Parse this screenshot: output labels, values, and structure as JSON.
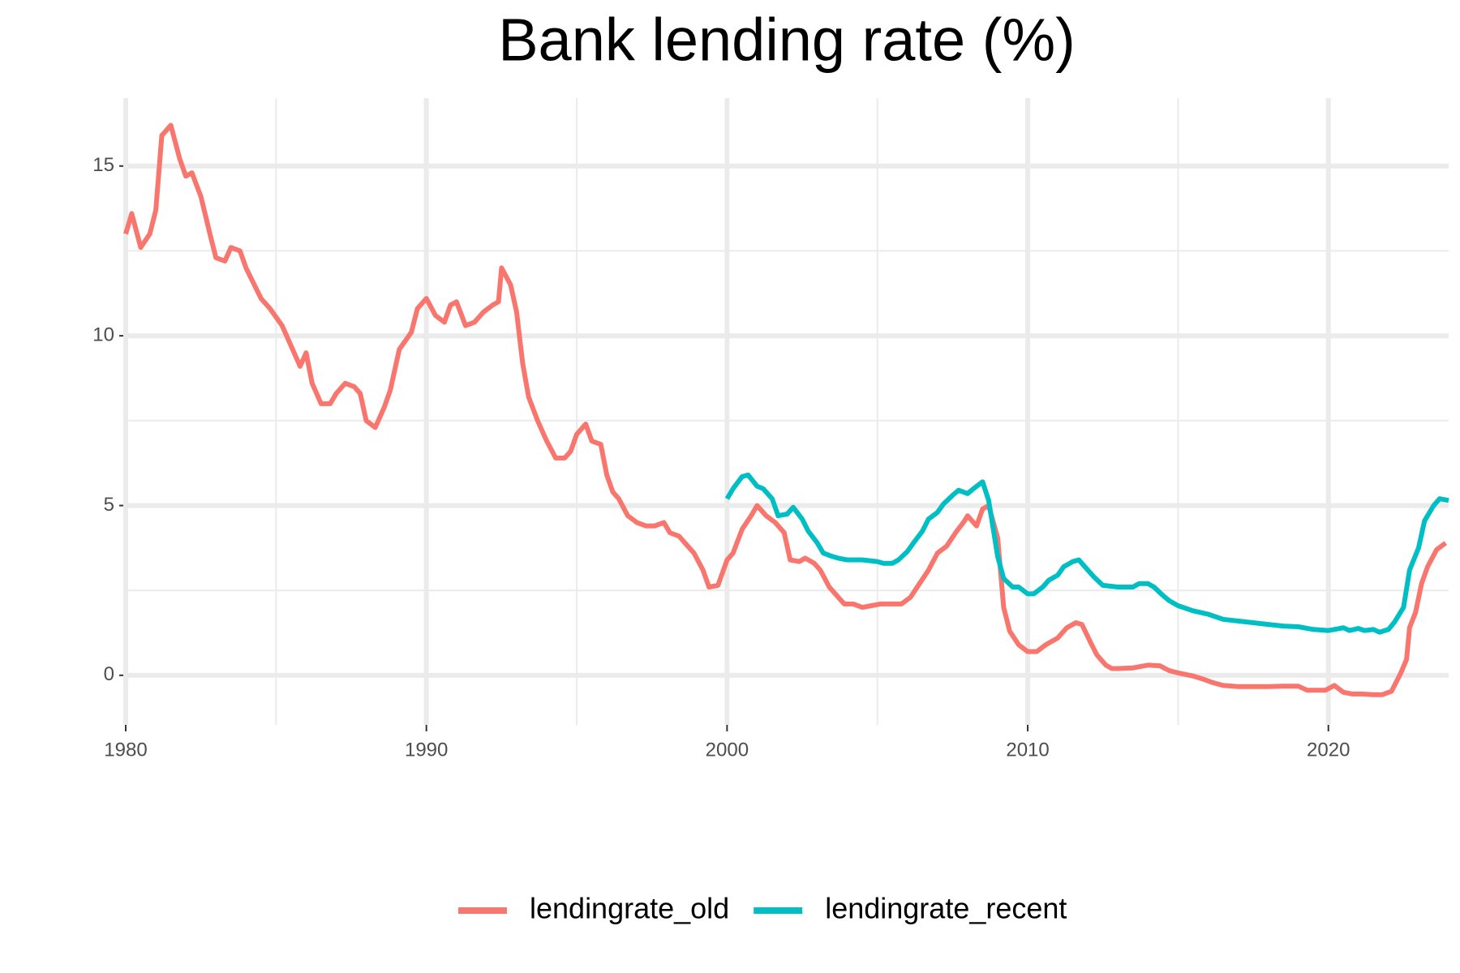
{
  "chart_data": {
    "type": "line",
    "title": "Bank lending rate (%)",
    "xlim": [
      1980,
      2024
    ],
    "xticks": [
      1980,
      1990,
      2000,
      2010,
      2020
    ],
    "x_minor_ticks": [
      1985,
      1995,
      2005,
      2015
    ],
    "ylim": [
      -1.46,
      17.0
    ],
    "yticks": [
      0,
      5,
      10,
      15
    ],
    "y_minor_ticks": [
      2.5,
      7.5,
      12.5
    ],
    "grid": true,
    "legend": "bottom",
    "series": [
      {
        "name": "lendingrate_old",
        "color": "#f8766d",
        "x": [
          1980.0,
          1980.2,
          1980.5,
          1980.8,
          1981.0,
          1981.2,
          1981.5,
          1981.8,
          1982.0,
          1982.2,
          1982.5,
          1982.8,
          1983.0,
          1983.3,
          1983.5,
          1983.8,
          1984.0,
          1984.5,
          1984.8,
          1985.2,
          1985.5,
          1985.8,
          1986.0,
          1986.2,
          1986.5,
          1986.8,
          1987.0,
          1987.3,
          1987.6,
          1987.8,
          1988.0,
          1988.3,
          1988.6,
          1988.8,
          1989.1,
          1989.5,
          1989.7,
          1990.0,
          1990.3,
          1990.6,
          1990.8,
          1991.0,
          1991.3,
          1991.6,
          1991.9,
          1992.2,
          1992.4,
          1992.5,
          1992.8,
          1993.0,
          1993.2,
          1993.4,
          1993.7,
          1994.0,
          1994.3,
          1994.6,
          1994.8,
          1995.0,
          1995.3,
          1995.5,
          1995.8,
          1996.0,
          1996.2,
          1996.4,
          1996.7,
          1997.0,
          1997.3,
          1997.6,
          1997.9,
          1998.1,
          1998.4,
          1998.6,
          1998.9,
          1999.2,
          1999.4,
          1999.7,
          2000.0,
          2000.2,
          2000.5,
          2000.8,
          2001.0,
          2001.3,
          2001.6,
          2001.9,
          2002.1,
          2002.4,
          2002.6,
          2002.9,
          2003.1,
          2003.4,
          2003.7,
          2003.9,
          2004.2,
          2004.5,
          2004.8,
          2005.1,
          2005.5,
          2005.8,
          2006.1,
          2006.4,
          2006.7,
          2007.0,
          2007.3,
          2007.6,
          2007.9,
          2008.0,
          2008.3,
          2008.5,
          2008.7,
          2009.0,
          2009.2,
          2009.4,
          2009.7,
          2010.0,
          2010.3,
          2010.6,
          2010.8,
          2011.0,
          2011.3,
          2011.6,
          2011.8,
          2012.1,
          2012.3,
          2012.6,
          2012.8,
          2013.0,
          2013.5,
          2014.0,
          2014.4,
          2014.7,
          2015.0,
          2015.5,
          2015.8,
          2016.1,
          2016.5,
          2017.0,
          2017.5,
          2018.0,
          2018.5,
          2019.0,
          2019.3,
          2019.6,
          2019.9,
          2020.2,
          2020.5,
          2020.8,
          2021.1,
          2021.5,
          2021.8,
          2022.1,
          2022.4,
          2022.6,
          2022.7,
          2022.9,
          2023.1,
          2023.3,
          2023.6,
          2023.9
        ],
        "values": [
          13.0,
          13.6,
          12.6,
          13.0,
          13.7,
          15.9,
          16.2,
          15.2,
          14.7,
          14.8,
          14.1,
          13.0,
          12.3,
          12.2,
          12.6,
          12.5,
          12.0,
          11.1,
          10.8,
          10.3,
          9.7,
          9.1,
          9.5,
          8.6,
          8.0,
          8.0,
          8.3,
          8.6,
          8.5,
          8.3,
          7.5,
          7.3,
          7.9,
          8.4,
          9.6,
          10.1,
          10.8,
          11.1,
          10.6,
          10.4,
          10.9,
          11.0,
          10.3,
          10.4,
          10.7,
          10.9,
          11.0,
          12.0,
          11.5,
          10.7,
          9.2,
          8.2,
          7.5,
          6.9,
          6.4,
          6.4,
          6.6,
          7.1,
          7.4,
          6.9,
          6.8,
          5.9,
          5.4,
          5.2,
          4.7,
          4.5,
          4.4,
          4.4,
          4.5,
          4.2,
          4.1,
          3.9,
          3.6,
          3.1,
          2.6,
          2.65,
          3.4,
          3.6,
          4.3,
          4.7,
          5.0,
          4.7,
          4.5,
          4.2,
          3.4,
          3.35,
          3.45,
          3.3,
          3.1,
          2.6,
          2.3,
          2.1,
          2.1,
          2.0,
          2.05,
          2.1,
          2.1,
          2.1,
          2.3,
          2.7,
          3.1,
          3.6,
          3.8,
          4.2,
          4.55,
          4.7,
          4.4,
          4.9,
          5.0,
          4.05,
          2.0,
          1.3,
          0.9,
          0.7,
          0.7,
          0.9,
          1.0,
          1.1,
          1.4,
          1.55,
          1.5,
          0.95,
          0.6,
          0.3,
          0.2,
          0.2,
          0.22,
          0.3,
          0.28,
          0.14,
          0.07,
          -0.02,
          -0.1,
          -0.2,
          -0.3,
          -0.33,
          -0.33,
          -0.33,
          -0.32,
          -0.32,
          -0.44,
          -0.44,
          -0.44,
          -0.3,
          -0.5,
          -0.55,
          -0.55,
          -0.57,
          -0.57,
          -0.47,
          0.05,
          0.47,
          1.4,
          1.85,
          2.7,
          3.2,
          3.7,
          3.9
        ]
      },
      {
        "name": "lendingrate_recent",
        "color": "#00bfc4",
        "x": [
          2000.0,
          2000.2,
          2000.5,
          2000.7,
          2001.0,
          2001.2,
          2001.5,
          2001.7,
          2002.0,
          2002.2,
          2002.5,
          2002.7,
          2003.0,
          2003.2,
          2003.5,
          2003.7,
          2004.0,
          2004.5,
          2005.0,
          2005.2,
          2005.5,
          2005.7,
          2006.0,
          2006.2,
          2006.5,
          2006.7,
          2007.0,
          2007.2,
          2007.5,
          2007.7,
          2008.0,
          2008.2,
          2008.5,
          2008.7,
          2009.0,
          2009.2,
          2009.5,
          2009.7,
          2010.0,
          2010.2,
          2010.5,
          2010.7,
          2011.0,
          2011.2,
          2011.5,
          2011.7,
          2012.0,
          2012.2,
          2012.5,
          2013.0,
          2013.5,
          2013.7,
          2014.0,
          2014.2,
          2014.5,
          2014.7,
          2015.0,
          2015.5,
          2016.0,
          2016.5,
          2017.0,
          2017.5,
          2018.0,
          2018.5,
          2019.0,
          2019.5,
          2020.0,
          2020.2,
          2020.5,
          2020.7,
          2021.0,
          2021.2,
          2021.5,
          2021.7,
          2022.0,
          2022.2,
          2022.5,
          2022.7,
          2023.0,
          2023.2,
          2023.5,
          2023.7,
          2024.0
        ],
        "values": [
          5.2,
          5.5,
          5.85,
          5.9,
          5.57,
          5.5,
          5.2,
          4.7,
          4.75,
          4.95,
          4.6,
          4.25,
          3.9,
          3.6,
          3.5,
          3.45,
          3.4,
          3.4,
          3.35,
          3.3,
          3.3,
          3.4,
          3.65,
          3.9,
          4.25,
          4.6,
          4.8,
          5.05,
          5.3,
          5.45,
          5.35,
          5.5,
          5.7,
          5.15,
          3.5,
          2.85,
          2.6,
          2.6,
          2.4,
          2.4,
          2.6,
          2.8,
          2.95,
          3.2,
          3.35,
          3.4,
          3.1,
          2.9,
          2.65,
          2.6,
          2.6,
          2.7,
          2.7,
          2.6,
          2.35,
          2.2,
          2.05,
          1.9,
          1.8,
          1.65,
          1.6,
          1.55,
          1.5,
          1.45,
          1.43,
          1.35,
          1.32,
          1.35,
          1.4,
          1.32,
          1.38,
          1.32,
          1.35,
          1.27,
          1.35,
          1.57,
          2.0,
          3.1,
          3.75,
          4.55,
          5.0,
          5.2,
          5.15
        ]
      }
    ]
  }
}
